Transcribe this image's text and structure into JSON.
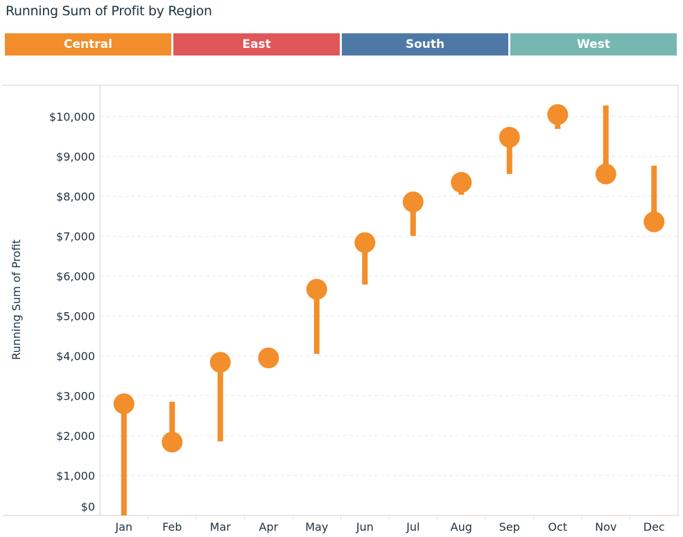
{
  "title": "Running Sum of Profit by Region",
  "legend": [
    {
      "label": "Central",
      "color": "#f28e2b"
    },
    {
      "label": "East",
      "color": "#e15759"
    },
    {
      "label": "South",
      "color": "#4e79a7"
    },
    {
      "label": "West",
      "color": "#76b7b2"
    }
  ],
  "chart_data": {
    "type": "gantt-lollipop",
    "title": "Running Sum of Profit by Region",
    "ylabel": "Running Sum of Profit",
    "xlabel": "",
    "categories": [
      "Jan",
      "Feb",
      "Mar",
      "Apr",
      "May",
      "Jun",
      "Jul",
      "Aug",
      "Sep",
      "Oct",
      "Nov",
      "Dec"
    ],
    "ylim": [
      0,
      10500
    ],
    "yticks": [
      0,
      1000,
      2000,
      3000,
      4000,
      5000,
      6000,
      7000,
      8000,
      9000,
      10000
    ],
    "ytick_labels": [
      "$0",
      "$1,000",
      "$2,000",
      "$3,000",
      "$4,000",
      "$5,000",
      "$6,000",
      "$7,000",
      "$8,000",
      "$9,000",
      "$10,000"
    ],
    "grid": true,
    "series": [
      {
        "name": "Central",
        "color": "#f28e2b",
        "running_sum": [
          2800,
          1840,
          3840,
          3950,
          5670,
          6840,
          7860,
          8350,
          9480,
          10050,
          8560,
          7360
        ],
        "bar_start": [
          0,
          2850,
          1860,
          3900,
          4050,
          5790,
          7010,
          8040,
          8560,
          9690,
          10280,
          8770
        ]
      }
    ]
  }
}
